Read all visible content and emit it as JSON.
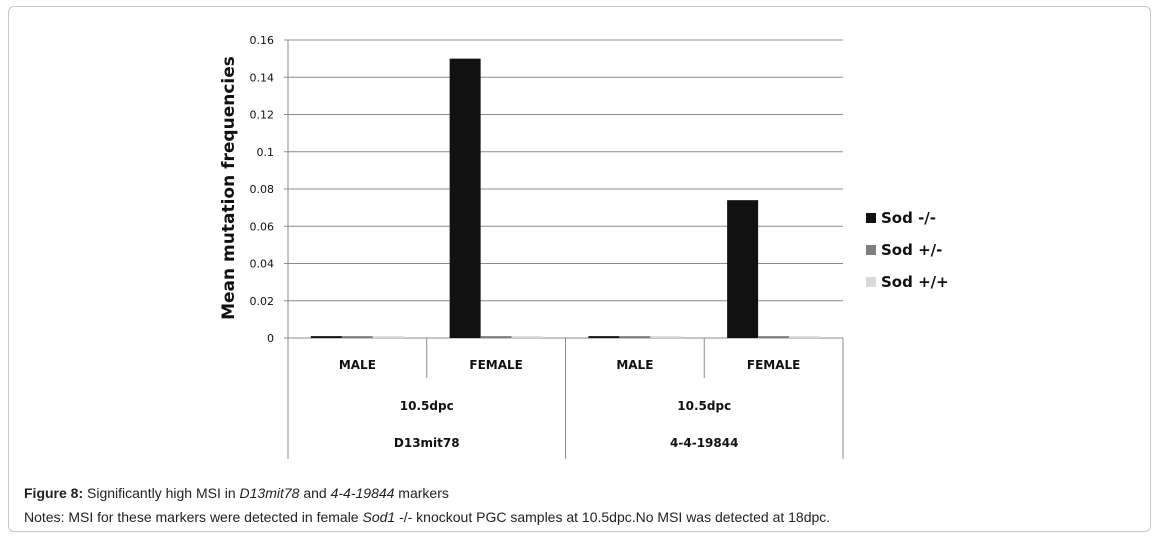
{
  "chart_data": {
    "type": "bar",
    "ylabel": "Mean mutation frequencies",
    "ylim": [
      0,
      0.16
    ],
    "yticks": [
      "0",
      "0.02",
      "0.04",
      "0.06",
      "0.08",
      "0.1",
      "0.12",
      "0.14",
      "0.16"
    ],
    "categories": [
      "MALE",
      "FEMALE",
      "MALE",
      "FEMALE"
    ],
    "group_level2": [
      {
        "label": "10.5dpc",
        "span": 2
      },
      {
        "label": "10.5dpc",
        "span": 2
      }
    ],
    "group_level3": [
      {
        "label": "D13mit78",
        "span": 2
      },
      {
        "label": "4-4-19844",
        "span": 2
      }
    ],
    "series": [
      {
        "name": "Sod -/-",
        "color": "#111111",
        "values": [
          0.001,
          0.15,
          0.001,
          0.074
        ]
      },
      {
        "name": "Sod +/-",
        "color": "#7f7f7f",
        "values": [
          0.001,
          0.001,
          0.001,
          0.001
        ]
      },
      {
        "name": "Sod +/+",
        "color": "#d9d9d9",
        "values": [
          0.001,
          0.001,
          0.001,
          0.001
        ]
      }
    ],
    "grid": true,
    "legend_position": "right"
  },
  "caption": {
    "figure_label": "Figure 8:",
    "text_1": " Significantly high MSI in ",
    "marker_1": "D13mit78",
    "text_2": " and ",
    "marker_2": "4-4-19844",
    "text_3": " markers",
    "notes_1": "Notes: MSI for these markers were detected in female ",
    "gene": "Sod1",
    "notes_2": " -/- knockout PGC samples at 10.5dpc.No MSI was detected at 18dpc."
  }
}
